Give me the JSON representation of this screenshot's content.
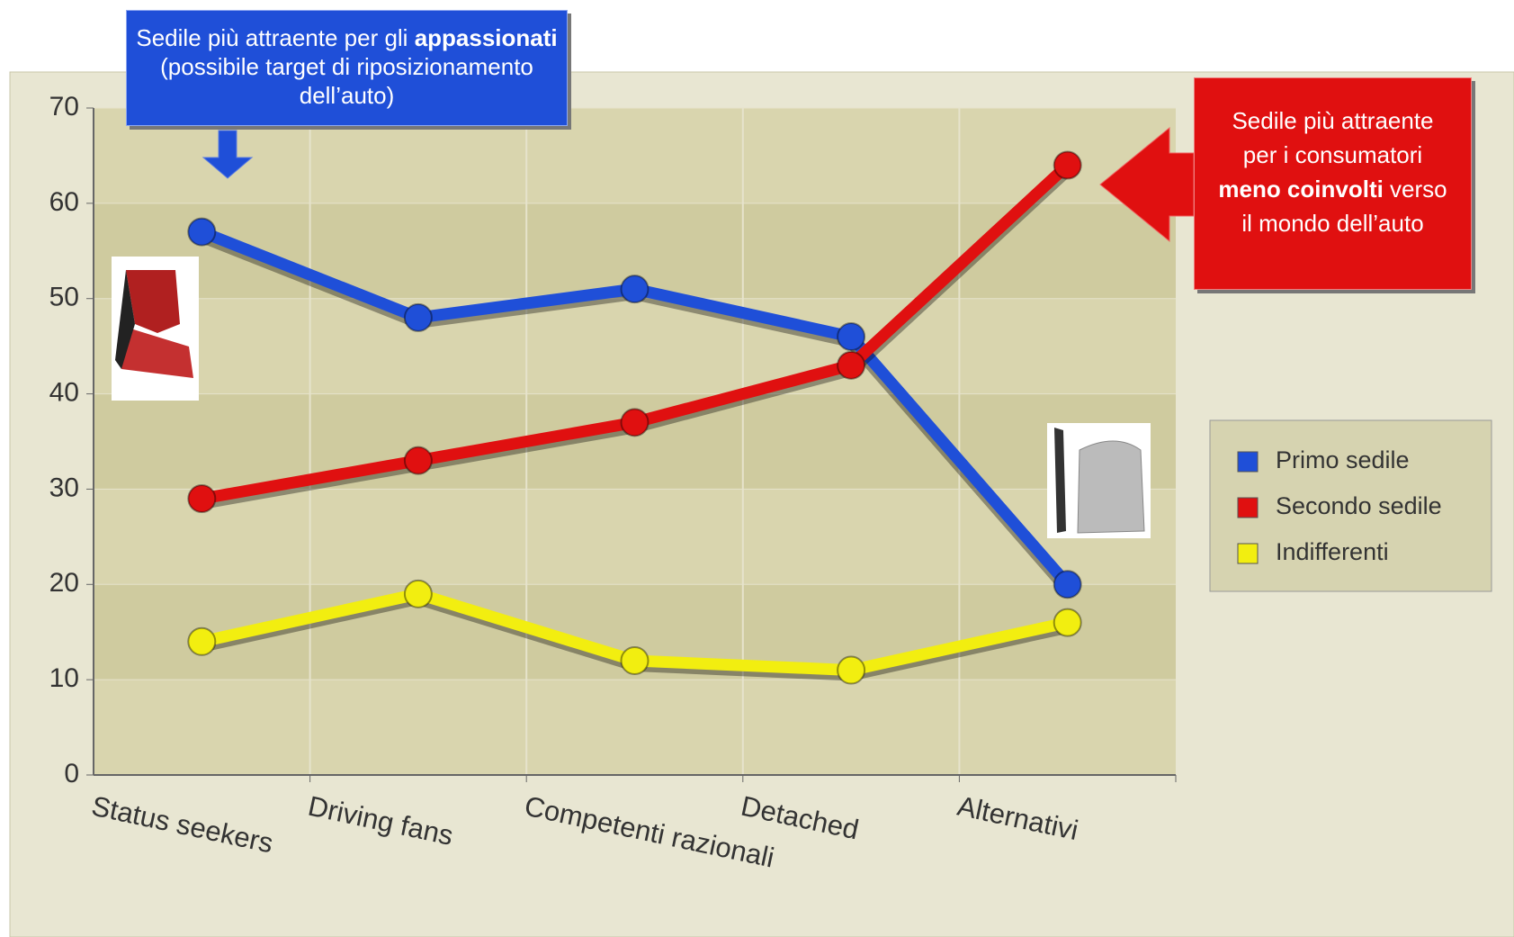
{
  "chart_data": {
    "type": "line",
    "categories": [
      "Status seekers",
      "Driving fans",
      "Competenti razionali",
      "Detached",
      "Alternativi"
    ],
    "series": [
      {
        "name": "Primo sedile",
        "color": "#1f4fd8",
        "values": [
          57,
          48,
          51,
          46,
          20
        ]
      },
      {
        "name": "Secondo sedile",
        "color": "#e01010",
        "values": [
          29,
          33,
          37,
          43,
          64
        ]
      },
      {
        "name": "Indifferenti",
        "color": "#f2ee10",
        "values": [
          14,
          19,
          12,
          11,
          16
        ]
      }
    ],
    "ylim": [
      0,
      70
    ],
    "yticks": [
      0,
      10,
      20,
      30,
      40,
      50,
      60,
      70
    ],
    "grid": true,
    "legend": "right",
    "annotations": [
      {
        "before": "Sedile più attraente per gli ",
        "bold": "appassionati",
        "after": " (possibile target di riposizionamento dell’auto)"
      },
      {
        "before": "Sedile più attraente per i consumatori ",
        "bold": "meno coinvolti",
        "after": " verso il mondo dell’auto"
      }
    ]
  }
}
